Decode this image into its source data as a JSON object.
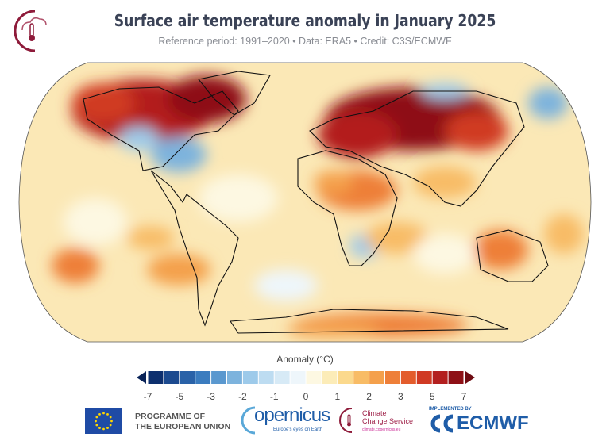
{
  "header": {
    "title": "Surface air temperature anomaly in January 2025",
    "subtitle": "Reference period: 1991–2020 • Data: ERA5 • Credit: C3S/ECMWF",
    "logo_icon": "c3s-thermometer-cloud-icon"
  },
  "colorbar": {
    "title": "Anomaly (°C)",
    "tick_labels": [
      "-7",
      "-5",
      "-3",
      "-2",
      "-1",
      "0",
      "1",
      "2",
      "3",
      "5",
      "7"
    ],
    "levels": [
      -7,
      -6,
      -5,
      -4,
      -3,
      -2.5,
      -2,
      -1.5,
      -1,
      -0.5,
      0,
      0.5,
      1,
      1.5,
      2,
      2.5,
      3,
      4,
      5,
      6,
      7
    ],
    "colors": [
      "#0d2f6e",
      "#1c4a8f",
      "#2a62a8",
      "#3b7cbf",
      "#5a98cf",
      "#7db3dd",
      "#9dcaea",
      "#bddcf1",
      "#d7eaf6",
      "#eef6fb",
      "#fdf8e2",
      "#fcecb8",
      "#fbd98d",
      "#f8bc66",
      "#f4a04c",
      "#ee7f39",
      "#e35c2c",
      "#d03a24",
      "#b31f1f",
      "#8e1016"
    ],
    "under_color": "#0a2358",
    "over_color": "#6e0b12"
  },
  "footer": {
    "eu": {
      "line1": "PROGRAMME OF",
      "line2": "THE EUROPEAN UNION",
      "icon": "eu-flag-icon"
    },
    "copernicus": {
      "name": "opernicus",
      "tagline": "Europe's eyes on Earth"
    },
    "c3s": {
      "line1": "Climate",
      "line2": "Change Service",
      "url": "climate.copernicus.eu"
    },
    "ecmwf": {
      "implemented_by": "IMPLEMENTED BY",
      "name": "ECMWF"
    }
  }
}
